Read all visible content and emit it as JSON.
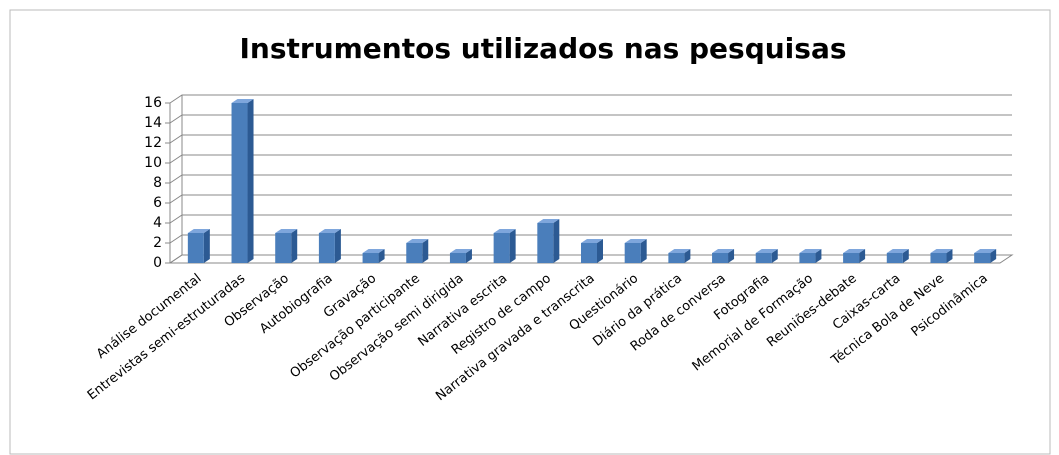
{
  "chart_data": {
    "type": "bar3d",
    "title": "Instrumentos utilizados nas pesquisas",
    "categories": [
      "Análise documental",
      "Entrevistas semi-estruturadas",
      "Observação",
      "Autobiografia",
      "Gravação",
      "Observação participante",
      "Observação semi dirigida",
      "Narrativa escrita",
      "Registro de campo",
      "Narrativa gravada e transcrita",
      "Questionário",
      "Diário da prática",
      "Roda de conversa",
      "Fotografia",
      "Memorial de Formação",
      "Reuniões-debate",
      "Caixas-carta",
      "Técnica Bola de Neve",
      "Psicodinâmica"
    ],
    "values": [
      3,
      16,
      3,
      3,
      1,
      2,
      1,
      3,
      4,
      2,
      2,
      1,
      1,
      1,
      1,
      1,
      1,
      1,
      1
    ],
    "color": "#4a7ebb",
    "ylim": [
      0,
      16
    ],
    "yticks": [
      0,
      2,
      4,
      6,
      8,
      10,
      12,
      14,
      16
    ],
    "grid": true
  }
}
